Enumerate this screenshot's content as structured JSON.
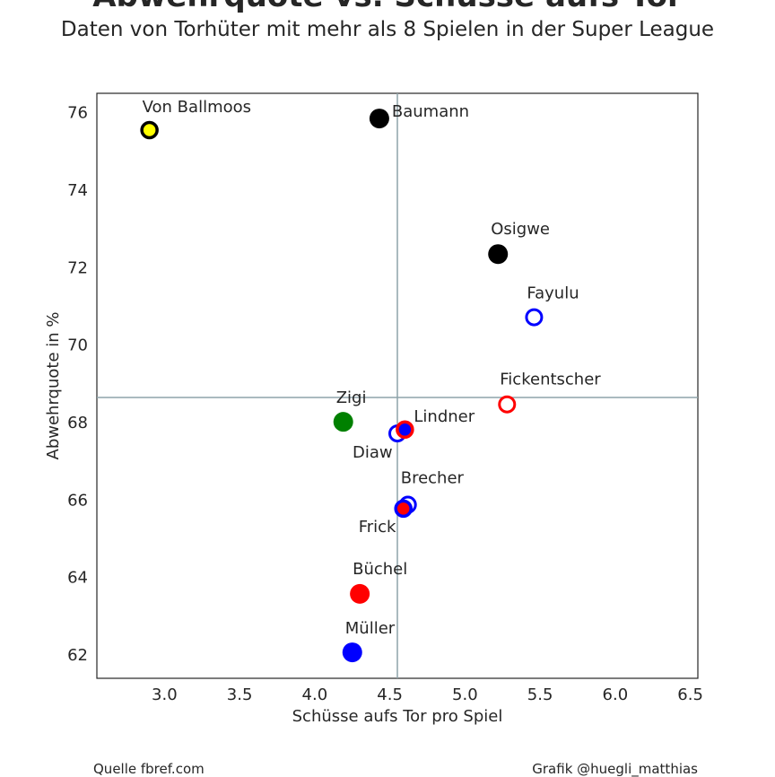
{
  "title_partial": "Abwehrquote vs. Schüsse aufs Tor",
  "subtitle": "Daten von Torhüter mit mehr als 8 Spielen in der Super League",
  "footer": {
    "source": "Quelle fbref.com",
    "credit": "Grafik @huegli_matthias"
  },
  "chart_data": {
    "type": "scatter",
    "xlabel": "Schüsse aufs Tor pro Spiel",
    "ylabel": "Abwehrquote in %",
    "xlim": [
      2.55,
      6.55
    ],
    "ylim": [
      61.4,
      76.5
    ],
    "xticks": [
      "3.0",
      "3.5",
      "4.0",
      "4.5",
      "5.0",
      "5.5",
      "6.0",
      "6.5"
    ],
    "yticks": [
      "62",
      "64",
      "66",
      "68",
      "70",
      "72",
      "74",
      "76"
    ],
    "xtick_values": [
      3.0,
      3.5,
      4.0,
      4.5,
      5.0,
      5.5,
      6.0,
      6.5
    ],
    "ytick_values": [
      62,
      64,
      66,
      68,
      70,
      72,
      74,
      76
    ],
    "reference_lines": {
      "x": 4.55,
      "y": 68.65
    },
    "grid": false,
    "points": [
      {
        "name": "Von Ballmoos",
        "x": 2.9,
        "y": 75.55,
        "fill": "#ffff00",
        "edge": "#000000",
        "hollow": false,
        "edge_style": "ring"
      },
      {
        "name": "Baumann",
        "x": 4.43,
        "y": 75.85,
        "fill": "#000000",
        "edge": "#000000",
        "hollow": false
      },
      {
        "name": "Osigwe",
        "x": 5.22,
        "y": 72.35,
        "fill": "#000000",
        "edge": "#000000",
        "hollow": false
      },
      {
        "name": "Fayulu",
        "x": 5.46,
        "y": 70.72,
        "fill": "#ffffff",
        "edge": "#0000ff",
        "hollow": true
      },
      {
        "name": "Fickentscher",
        "x": 5.28,
        "y": 68.47,
        "fill": "#ffffff",
        "edge": "#ff0000",
        "hollow": true
      },
      {
        "name": "Zigi",
        "x": 4.19,
        "y": 68.02,
        "fill": "#008000",
        "edge": "#008000",
        "hollow": false
      },
      {
        "name": "Diaw",
        "x": 4.55,
        "y": 67.72,
        "fill": "#ffffff",
        "edge": "#0000ff",
        "hollow": true
      },
      {
        "name": "Lindner",
        "x": 4.6,
        "y": 67.82,
        "fill": "#0000ff",
        "edge": "#ff0000",
        "hollow": false,
        "edge_style": "ring"
      },
      {
        "name": "Brecher",
        "x": 4.62,
        "y": 65.88,
        "fill": "#ffffff",
        "edge": "#0000ff",
        "hollow": true
      },
      {
        "name": "Frick",
        "x": 4.59,
        "y": 65.78,
        "fill": "#ff0000",
        "edge": "#0000ff",
        "hollow": false,
        "edge_style": "ring"
      },
      {
        "name": "Büchel",
        "x": 4.3,
        "y": 63.58,
        "fill": "#ff0000",
        "edge": "#ff0000",
        "hollow": false
      },
      {
        "name": "Müller",
        "x": 4.25,
        "y": 62.07,
        "fill": "#0000ff",
        "edge": "#0000ff",
        "hollow": false
      }
    ]
  }
}
